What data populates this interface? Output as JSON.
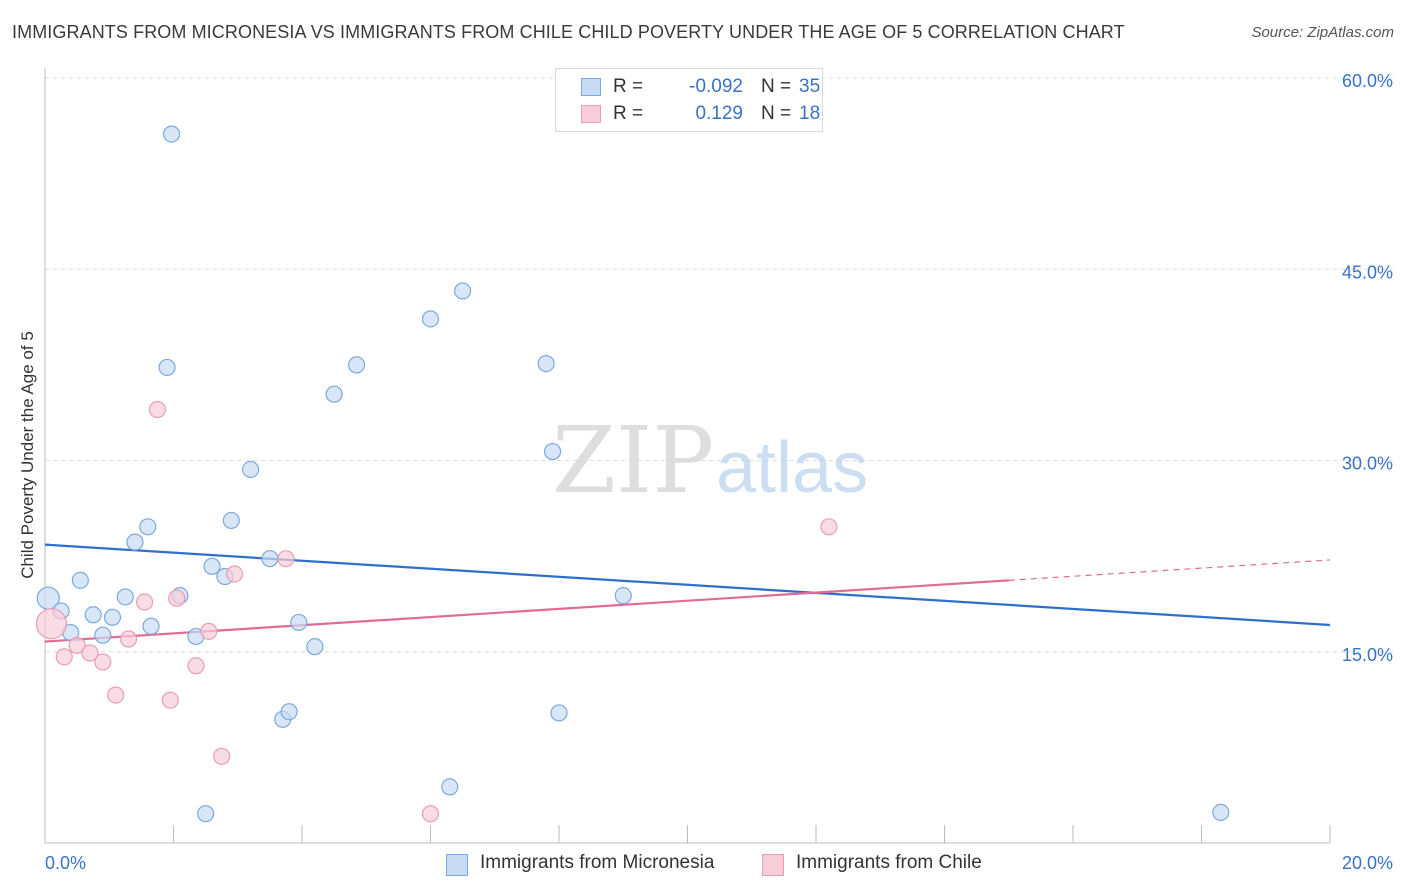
{
  "title": "IMMIGRANTS FROM MICRONESIA VS IMMIGRANTS FROM CHILE CHILD POVERTY UNDER THE AGE OF 5 CORRELATION CHART",
  "source": "Source: ZipAtlas.com",
  "watermark": {
    "zip": "ZIP",
    "atlas": "atlas"
  },
  "colors": {
    "blue_fill": "#c7dcf3",
    "blue_stroke": "#7aaadf",
    "blue_line": "#2f6fca",
    "pink_fill": "#f8cdd9",
    "pink_stroke": "#ec9cb4",
    "pink_line": "#e06c95",
    "value_text": "#3a72c4"
  },
  "legend": {
    "r_label": "R =",
    "n_label": "N =",
    "rows": [
      {
        "swatch": "blue",
        "r": "-0.092",
        "n": "35"
      },
      {
        "swatch": "pink",
        "r": "0.129",
        "n": "18"
      }
    ]
  },
  "chart_data": {
    "type": "scatter",
    "xlabel": "",
    "ylabel": "Child Poverty Under the Age of 5",
    "xlim": [
      0,
      20
    ],
    "ylim": [
      0,
      60
    ],
    "x_tick_labels": [
      "0.0%",
      "20.0%"
    ],
    "y_ticks": [
      15,
      30,
      45,
      60
    ],
    "y_tick_labels": [
      "15.0%",
      "30.0%",
      "45.0%",
      "60.0%"
    ],
    "grid": true,
    "legend_position": "top-center",
    "series": [
      {
        "name": "Immigrants from Micronesia",
        "color": "blue",
        "points": [
          [
            0.05,
            19.2
          ],
          [
            0.25,
            18.2
          ],
          [
            0.4,
            16.5
          ],
          [
            0.55,
            20.6
          ],
          [
            0.75,
            17.9
          ],
          [
            0.9,
            16.3
          ],
          [
            1.05,
            17.7
          ],
          [
            1.25,
            19.3
          ],
          [
            1.4,
            23.6
          ],
          [
            1.6,
            24.8
          ],
          [
            1.65,
            17.0
          ],
          [
            1.9,
            37.3
          ],
          [
            1.97,
            55.6
          ],
          [
            2.1,
            19.4
          ],
          [
            2.35,
            16.2
          ],
          [
            2.5,
            2.3
          ],
          [
            2.6,
            21.7
          ],
          [
            2.8,
            20.9
          ],
          [
            2.9,
            25.3
          ],
          [
            3.2,
            29.3
          ],
          [
            3.5,
            22.3
          ],
          [
            3.7,
            9.7
          ],
          [
            3.8,
            10.3
          ],
          [
            3.95,
            17.3
          ],
          [
            4.2,
            15.4
          ],
          [
            4.5,
            35.2
          ],
          [
            4.85,
            37.5
          ],
          [
            6.0,
            41.1
          ],
          [
            6.3,
            4.4
          ],
          [
            6.5,
            43.3
          ],
          [
            7.8,
            37.6
          ],
          [
            7.9,
            30.7
          ],
          [
            8.0,
            10.2
          ],
          [
            9.0,
            19.4
          ],
          [
            18.3,
            2.4
          ]
        ]
      },
      {
        "name": "Immigrants from Chile",
        "color": "pink",
        "points": [
          [
            0.1,
            17.2
          ],
          [
            0.3,
            14.6
          ],
          [
            0.5,
            15.5
          ],
          [
            0.7,
            14.9
          ],
          [
            0.9,
            14.2
          ],
          [
            1.1,
            11.6
          ],
          [
            1.3,
            16.0
          ],
          [
            1.55,
            18.9
          ],
          [
            1.75,
            34.0
          ],
          [
            1.95,
            11.2
          ],
          [
            2.05,
            19.2
          ],
          [
            2.35,
            13.9
          ],
          [
            2.55,
            16.6
          ],
          [
            2.75,
            6.8
          ],
          [
            2.95,
            21.1
          ],
          [
            3.75,
            22.3
          ],
          [
            6.0,
            2.3
          ],
          [
            12.2,
            24.8
          ]
        ]
      }
    ],
    "trendlines": [
      {
        "series": "Immigrants from Micronesia",
        "from": [
          0,
          23.4
        ],
        "to": [
          20,
          17.1
        ],
        "style": "solid"
      },
      {
        "series": "Immigrants from Chile",
        "from": [
          0,
          15.8
        ],
        "to": [
          15.0,
          20.6
        ],
        "style": "solid"
      },
      {
        "series": "Immigrants from Chile",
        "from": [
          15.0,
          20.6
        ],
        "to": [
          20,
          22.2
        ],
        "style": "dashed"
      }
    ]
  }
}
